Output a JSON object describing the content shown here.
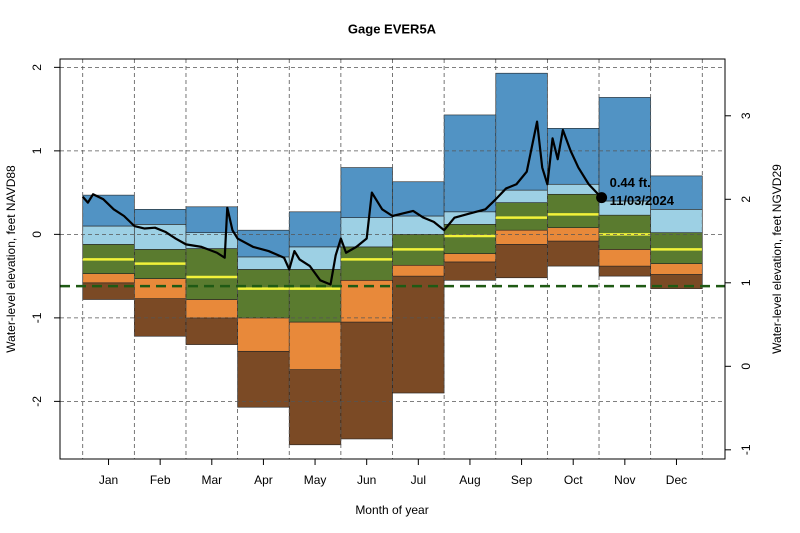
{
  "chart_data": {
    "type": "percentile_band",
    "title": "Gage EVER5A",
    "xlabel": "Month of year",
    "ylabel": "Water-level elevation, feet NAVD88",
    "y2label": "Water-level elevation, feet NGVD29",
    "categories": [
      "Jan",
      "Feb",
      "Mar",
      "Apr",
      "May",
      "Jun",
      "Jul",
      "Aug",
      "Sep",
      "Oct",
      "Nov",
      "Dec"
    ],
    "xlim": [
      -0.44,
      12.44
    ],
    "ylim": [
      -2.69,
      2.1
    ],
    "yticks": [
      -2,
      -1,
      0,
      1,
      2
    ],
    "y2lim": [
      -1.11,
      3.68
    ],
    "y2ticks": [
      -1,
      0,
      1,
      2,
      3
    ],
    "grid": true,
    "band_colors": [
      "#7b4a25",
      "#e8893a",
      "#5a7b2f",
      "#9dd0e4",
      "#5193c4"
    ],
    "levels": [
      {
        "values": [
          -0.78,
          -1.22,
          -1.32,
          -2.07,
          -2.52,
          -2.45,
          -1.9,
          -0.55,
          -0.52,
          -0.38,
          -0.5,
          -0.65
        ]
      },
      {
        "values": [
          -0.58,
          -0.77,
          -1.0,
          -1.4,
          -1.62,
          -1.05,
          -0.5,
          -0.33,
          -0.12,
          -0.08,
          -0.38,
          -0.48
        ]
      },
      {
        "values": [
          -0.47,
          -0.53,
          -0.78,
          -1.0,
          -1.05,
          -0.55,
          -0.37,
          -0.23,
          0.05,
          0.08,
          -0.18,
          -0.35
        ]
      },
      {
        "values": [
          -0.12,
          -0.18,
          -0.17,
          -0.42,
          -0.42,
          -0.15,
          0.0,
          0.12,
          0.38,
          0.48,
          0.23,
          0.02
        ]
      },
      {
        "values": [
          0.1,
          0.12,
          0.02,
          -0.27,
          -0.15,
          0.2,
          0.22,
          0.27,
          0.53,
          0.6,
          0.4,
          0.3
        ]
      },
      {
        "values": [
          0.47,
          0.3,
          0.33,
          0.05,
          0.27,
          0.8,
          0.63,
          1.43,
          1.93,
          1.27,
          1.64,
          0.7
        ]
      }
    ],
    "median": {
      "color": "#f2f23a",
      "values": [
        -0.3,
        -0.35,
        -0.51,
        -0.65,
        -0.65,
        -0.3,
        -0.18,
        -0.02,
        0.2,
        0.24,
        0.0,
        -0.18
      ]
    },
    "reference_line": {
      "value": -0.62,
      "color": "#1f5a14"
    },
    "line": {
      "color": "#000000",
      "x": [
        0,
        0.1,
        0.2,
        0.4,
        0.6,
        0.8,
        1.0,
        1.2,
        1.4,
        1.6,
        1.8,
        2.0,
        2.3,
        2.6,
        2.75,
        2.8,
        2.9,
        3.0,
        3.3,
        3.6,
        3.9,
        4.0,
        4.1,
        4.2,
        4.4,
        4.6,
        4.8,
        4.9,
        5.0,
        5.1,
        5.3,
        5.5,
        5.6,
        5.8,
        6.0,
        6.2,
        6.4,
        6.6,
        6.8,
        7.0,
        7.2,
        7.5,
        7.8,
        8.0,
        8.2,
        8.4,
        8.6,
        8.8,
        8.9,
        9.0,
        9.1,
        9.2,
        9.3,
        9.45,
        9.6,
        9.8,
        10.0,
        10.05
      ],
      "values": [
        0.45,
        0.38,
        0.48,
        0.42,
        0.3,
        0.22,
        0.1,
        0.07,
        0.08,
        0.03,
        -0.05,
        -0.12,
        -0.15,
        -0.22,
        -0.28,
        0.32,
        0.05,
        -0.05,
        -0.15,
        -0.2,
        -0.28,
        -0.42,
        -0.2,
        -0.3,
        -0.38,
        -0.55,
        -0.6,
        -0.25,
        -0.05,
        -0.22,
        -0.15,
        -0.05,
        0.5,
        0.3,
        0.22,
        0.25,
        0.28,
        0.2,
        0.15,
        0.05,
        0.2,
        0.25,
        0.3,
        0.42,
        0.55,
        0.6,
        0.75,
        1.35,
        0.8,
        0.6,
        1.15,
        0.9,
        1.25,
        1.0,
        0.8,
        0.6,
        0.47,
        0.44
      ]
    },
    "last_point": {
      "x": 10.05,
      "value": 0.44,
      "label": "0.44 ft.",
      "date": "11/03/2024"
    }
  }
}
